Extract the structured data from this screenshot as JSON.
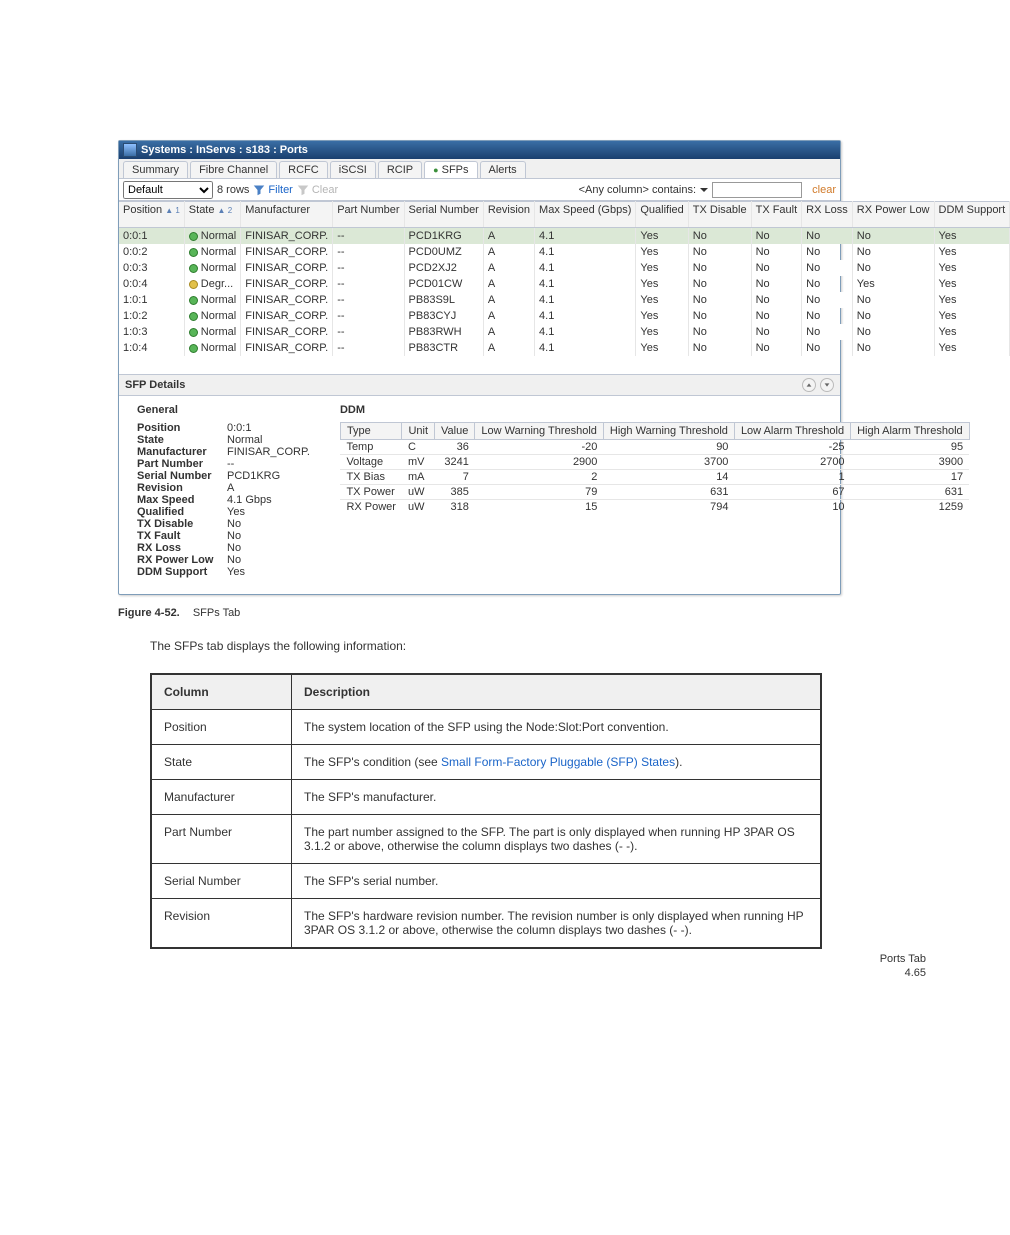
{
  "window_title": "Systems : InServs : s183 : Ports",
  "tabs": {
    "items": [
      "Summary",
      "Fibre Channel",
      "RCFC",
      "iSCSI",
      "RCIP",
      "SFPs",
      "Alerts"
    ],
    "active_index": 5,
    "sfps_dot_color": "#3b8f3b"
  },
  "filterbar": {
    "view": "Default",
    "rowcount": "8 rows",
    "filter_label": "Filter",
    "clear_filter_label": "Clear",
    "anycol_label": "<Any column>",
    "contains_label": "contains:",
    "search_value": "",
    "clear_label": "clear"
  },
  "grid": {
    "columns": [
      {
        "label": "Position",
        "sort": 1
      },
      {
        "label": "State",
        "sort": 2
      },
      {
        "label": "Manufacturer"
      },
      {
        "label": "Part Number"
      },
      {
        "label": "Serial Number"
      },
      {
        "label": "Revision"
      },
      {
        "label": "Max Speed (Gbps)"
      },
      {
        "label": "Qualified"
      },
      {
        "label": "TX Disable"
      },
      {
        "label": "TX Fault"
      },
      {
        "label": "RX Loss"
      },
      {
        "label": "RX Power Low"
      },
      {
        "label": "DDM Support"
      }
    ],
    "rows": [
      {
        "selected": true,
        "state_kind": "ok",
        "cells": [
          "0:0:1",
          "Normal",
          "FINISAR_CORP.",
          "--",
          "PCD1KRG",
          "A",
          "4.1",
          "Yes",
          "No",
          "No",
          "No",
          "No",
          "Yes"
        ]
      },
      {
        "selected": false,
        "state_kind": "ok",
        "cells": [
          "0:0:2",
          "Normal",
          "FINISAR_CORP.",
          "--",
          "PCD0UMZ",
          "A",
          "4.1",
          "Yes",
          "No",
          "No",
          "No",
          "No",
          "Yes"
        ]
      },
      {
        "selected": false,
        "state_kind": "ok",
        "cells": [
          "0:0:3",
          "Normal",
          "FINISAR_CORP.",
          "--",
          "PCD2XJ2",
          "A",
          "4.1",
          "Yes",
          "No",
          "No",
          "No",
          "No",
          "Yes"
        ]
      },
      {
        "selected": false,
        "state_kind": "degr",
        "cells": [
          "0:0:4",
          "Degr...",
          "FINISAR_CORP.",
          "--",
          "PCD01CW",
          "A",
          "4.1",
          "Yes",
          "No",
          "No",
          "No",
          "Yes",
          "Yes"
        ]
      },
      {
        "selected": false,
        "state_kind": "ok",
        "cells": [
          "1:0:1",
          "Normal",
          "FINISAR_CORP.",
          "--",
          "PB83S9L",
          "A",
          "4.1",
          "Yes",
          "No",
          "No",
          "No",
          "No",
          "Yes"
        ]
      },
      {
        "selected": false,
        "state_kind": "ok",
        "cells": [
          "1:0:2",
          "Normal",
          "FINISAR_CORP.",
          "--",
          "PB83CYJ",
          "A",
          "4.1",
          "Yes",
          "No",
          "No",
          "No",
          "No",
          "Yes"
        ]
      },
      {
        "selected": false,
        "state_kind": "ok",
        "cells": [
          "1:0:3",
          "Normal",
          "FINISAR_CORP.",
          "--",
          "PB83RWH",
          "A",
          "4.1",
          "Yes",
          "No",
          "No",
          "No",
          "No",
          "Yes"
        ]
      },
      {
        "selected": false,
        "state_kind": "ok",
        "cells": [
          "1:0:4",
          "Normal",
          "FINISAR_CORP.",
          "--",
          "PB83CTR",
          "A",
          "4.1",
          "Yes",
          "No",
          "No",
          "No",
          "No",
          "Yes"
        ]
      }
    ]
  },
  "details": {
    "header": "SFP Details",
    "general_header": "General",
    "general": [
      {
        "k": "Position",
        "v": "0:0:1"
      },
      {
        "k": "State",
        "v": "Normal"
      },
      {
        "k": "Manufacturer",
        "v": "FINISAR_CORP."
      },
      {
        "k": "Part Number",
        "v": "--"
      },
      {
        "k": "Serial Number",
        "v": "PCD1KRG"
      },
      {
        "k": "Revision",
        "v": "A"
      },
      {
        "k": "Max Speed",
        "v": "4.1 Gbps"
      },
      {
        "k": "Qualified",
        "v": "Yes"
      },
      {
        "k": "TX Disable",
        "v": "No"
      },
      {
        "k": "TX Fault",
        "v": "No"
      },
      {
        "k": "RX Loss",
        "v": "No"
      },
      {
        "k": "RX Power Low",
        "v": "No"
      },
      {
        "k": "DDM Support",
        "v": "Yes"
      }
    ],
    "ddm_header": "DDM",
    "ddm_columns": [
      "Type",
      "Unit",
      "Value",
      "Low Warning Threshold",
      "High Warning Threshold",
      "Low Alarm Threshold",
      "High Alarm Threshold"
    ],
    "ddm_rows": [
      {
        "type": "Temp",
        "unit": "C",
        "value": "36",
        "lw": "-20",
        "hw": "90",
        "la": "-25",
        "ha": "95"
      },
      {
        "type": "Voltage",
        "unit": "mV",
        "value": "3241",
        "lw": "2900",
        "hw": "3700",
        "la": "2700",
        "ha": "3900"
      },
      {
        "type": "TX Bias",
        "unit": "mA",
        "value": "7",
        "lw": "2",
        "hw": "14",
        "la": "1",
        "ha": "17"
      },
      {
        "type": "TX Power",
        "unit": "uW",
        "value": "385",
        "lw": "79",
        "hw": "631",
        "la": "67",
        "ha": "631"
      },
      {
        "type": "RX Power",
        "unit": "uW",
        "value": "318",
        "lw": "15",
        "hw": "794",
        "la": "10",
        "ha": "1259"
      }
    ]
  },
  "caption": {
    "figno": "Figure 4-52.",
    "text": "SFPs Tab"
  },
  "desc_table": {
    "intro": "The SFPs tab displays the following information:",
    "header_col": "Column",
    "header_desc": "Description",
    "rows": [
      {
        "col": "Position",
        "desc": "The system location of the SFP using the Node:Slot:Port convention."
      },
      {
        "col": "State",
        "desc_prefix": "The SFP's condition (see ",
        "link_text": "Small Form-Factory Pluggable (SFP) States",
        "desc_suffix": ")."
      },
      {
        "col": "Manufacturer",
        "desc": "The SFP's manufacturer."
      },
      {
        "col": "Part Number",
        "desc": "The part number assigned to the SFP. The part is only displayed when running HP 3PAR OS 3.1.2 or above, otherwise the column displays two dashes (- -)."
      },
      {
        "col": "Serial Number",
        "desc": "The SFP's serial number."
      },
      {
        "col": "Revision",
        "desc": "The SFP's hardware revision number. The revision number is only displayed when running HP 3PAR OS 3.1.2 or above, otherwise the column displays two dashes (- -)."
      }
    ]
  },
  "footer": {
    "path": "Ports Tab",
    "pageno": "4.65"
  },
  "colors": {
    "titlebar_top": "#3a6ea5",
    "titlebar_bottom": "#1a3f6e",
    "border": "#c0c7d4",
    "selected_row": "#dbe8d6",
    "state_ok": "#58b558",
    "state_degr": "#e2c14a",
    "link": "#1a64c8",
    "clear_link": "#d17b2b"
  }
}
